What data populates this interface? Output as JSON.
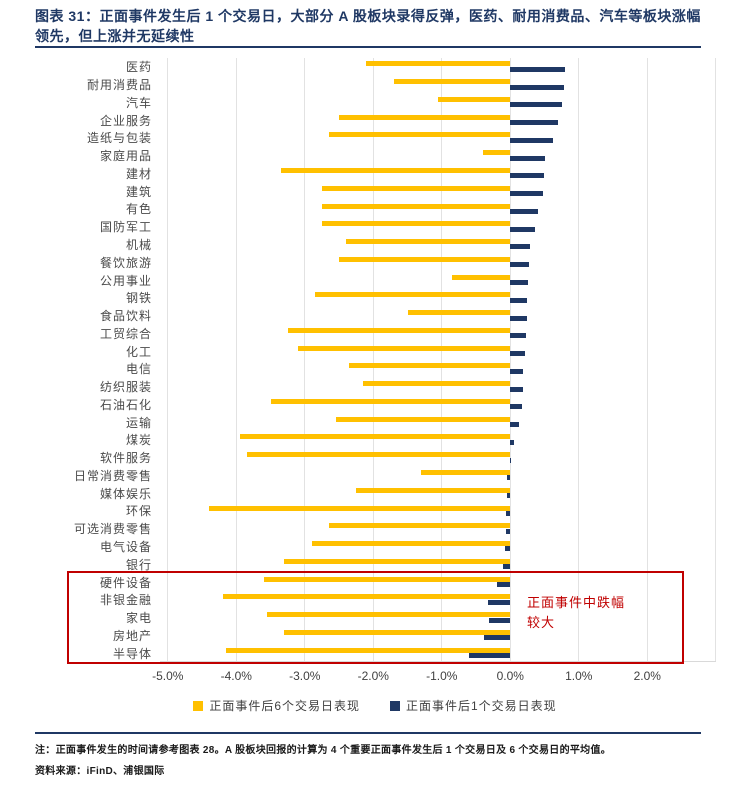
{
  "header": {
    "title": "图表 31：正面事件发生后 1 个交易日，大部分 A 股板块录得反弹，医药、耐用消费品、汽车等板块涨幅领先，但上涨并无延续性"
  },
  "chart_data": {
    "type": "bar",
    "orientation": "horizontal",
    "title": "",
    "xlabel": "",
    "ylabel": "",
    "xlim": [
      -5.11,
      3.0
    ],
    "grid": true,
    "legend_position": "bottom",
    "categories": [
      "医药",
      "耐用消费品",
      "汽车",
      "企业服务",
      "造纸与包装",
      "家庭用品",
      "建材",
      "建筑",
      "有色",
      "国防军工",
      "机械",
      "餐饮旅游",
      "公用事业",
      "钢铁",
      "食品饮料",
      "工贸综合",
      "化工",
      "电信",
      "纺织服装",
      "石油石化",
      "运输",
      "煤炭",
      "软件服务",
      "日常消费零售",
      "媒体娱乐",
      "环保",
      "可选消费零售",
      "电气设备",
      "银行",
      "硬件设备",
      "非银金融",
      "家电",
      "房地产",
      "半导体"
    ],
    "series": [
      {
        "name": "正面事件后6个交易日表现",
        "color": "#FFC000",
        "unit": "%",
        "values": [
          -2.1,
          -1.7,
          -1.05,
          -2.5,
          -2.65,
          -0.4,
          -3.35,
          -2.75,
          -2.75,
          -2.75,
          -2.4,
          -2.5,
          -0.85,
          -2.85,
          -1.5,
          -3.25,
          -3.1,
          -2.35,
          -2.15,
          -3.5,
          -2.55,
          -3.95,
          -3.85,
          -1.3,
          -2.25,
          -4.4,
          -2.65,
          -2.9,
          -3.3,
          -3.6,
          -4.2,
          -3.55,
          -3.3,
          -4.15
        ]
      },
      {
        "name": "正面事件后1个交易日表现",
        "color": "#1F3864",
        "unit": "%",
        "values": [
          0.8,
          0.79,
          0.76,
          0.7,
          0.63,
          0.51,
          0.49,
          0.48,
          0.41,
          0.36,
          0.29,
          0.27,
          0.26,
          0.25,
          0.24,
          0.23,
          0.22,
          0.19,
          0.18,
          0.17,
          0.13,
          0.05,
          0.01,
          -0.05,
          -0.05,
          -0.06,
          -0.07,
          -0.08,
          -0.1,
          -0.19,
          -0.32,
          -0.31,
          -0.39,
          -0.61
        ]
      }
    ],
    "gridlines": [
      -5,
      -4,
      -3,
      -2,
      -1,
      0,
      1,
      2,
      3
    ],
    "x_ticks": [
      {
        "value": -5,
        "label": "-5.0%"
      },
      {
        "value": -4,
        "label": "-4.0%"
      },
      {
        "value": -3,
        "label": "-3.0%"
      },
      {
        "value": -2,
        "label": "-2.0%"
      },
      {
        "value": -1,
        "label": "-1.0%"
      },
      {
        "value": 0,
        "label": "0.0%"
      },
      {
        "value": 1,
        "label": "1.0%"
      },
      {
        "value": 2,
        "label": "2.0%"
      }
    ],
    "annotation": {
      "line1": "正面事件中跌幅",
      "line2": "较大",
      "color": "#C00000",
      "box_color": "#C00000"
    }
  },
  "colors": {
    "accent_navy": "#1F3864",
    "accent_yellow": "#FFC000",
    "accent_red": "#C00000",
    "gridline": "#E2E2E2"
  },
  "footer": {
    "note": "注：正面事件发生的时间请参考图表 28。A 股板块回报的计算为 4 个重要正面事件发生后 1 个交易日及 6 个交易日的平均值。",
    "source": "资料来源：iFinD、浦银国际"
  }
}
